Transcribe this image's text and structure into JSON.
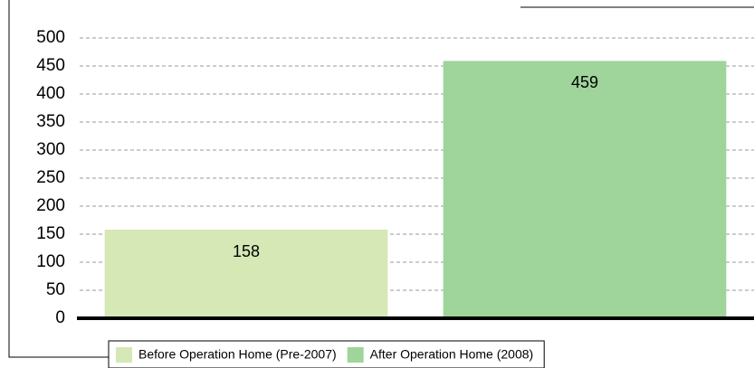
{
  "chart_data": {
    "type": "bar",
    "series": [
      {
        "name": "Before Operation Home (Pre-2007)",
        "color": "#d5e8b5",
        "values": [
          158
        ]
      },
      {
        "name": "After Operation Home (2008)",
        "color": "#9fd49b",
        "values": [
          459
        ]
      }
    ],
    "ylim": [
      0,
      500
    ],
    "yticks": [
      0,
      50,
      100,
      150,
      200,
      250,
      300,
      350,
      400,
      450,
      500
    ],
    "grid": true,
    "legend": "bottom"
  }
}
